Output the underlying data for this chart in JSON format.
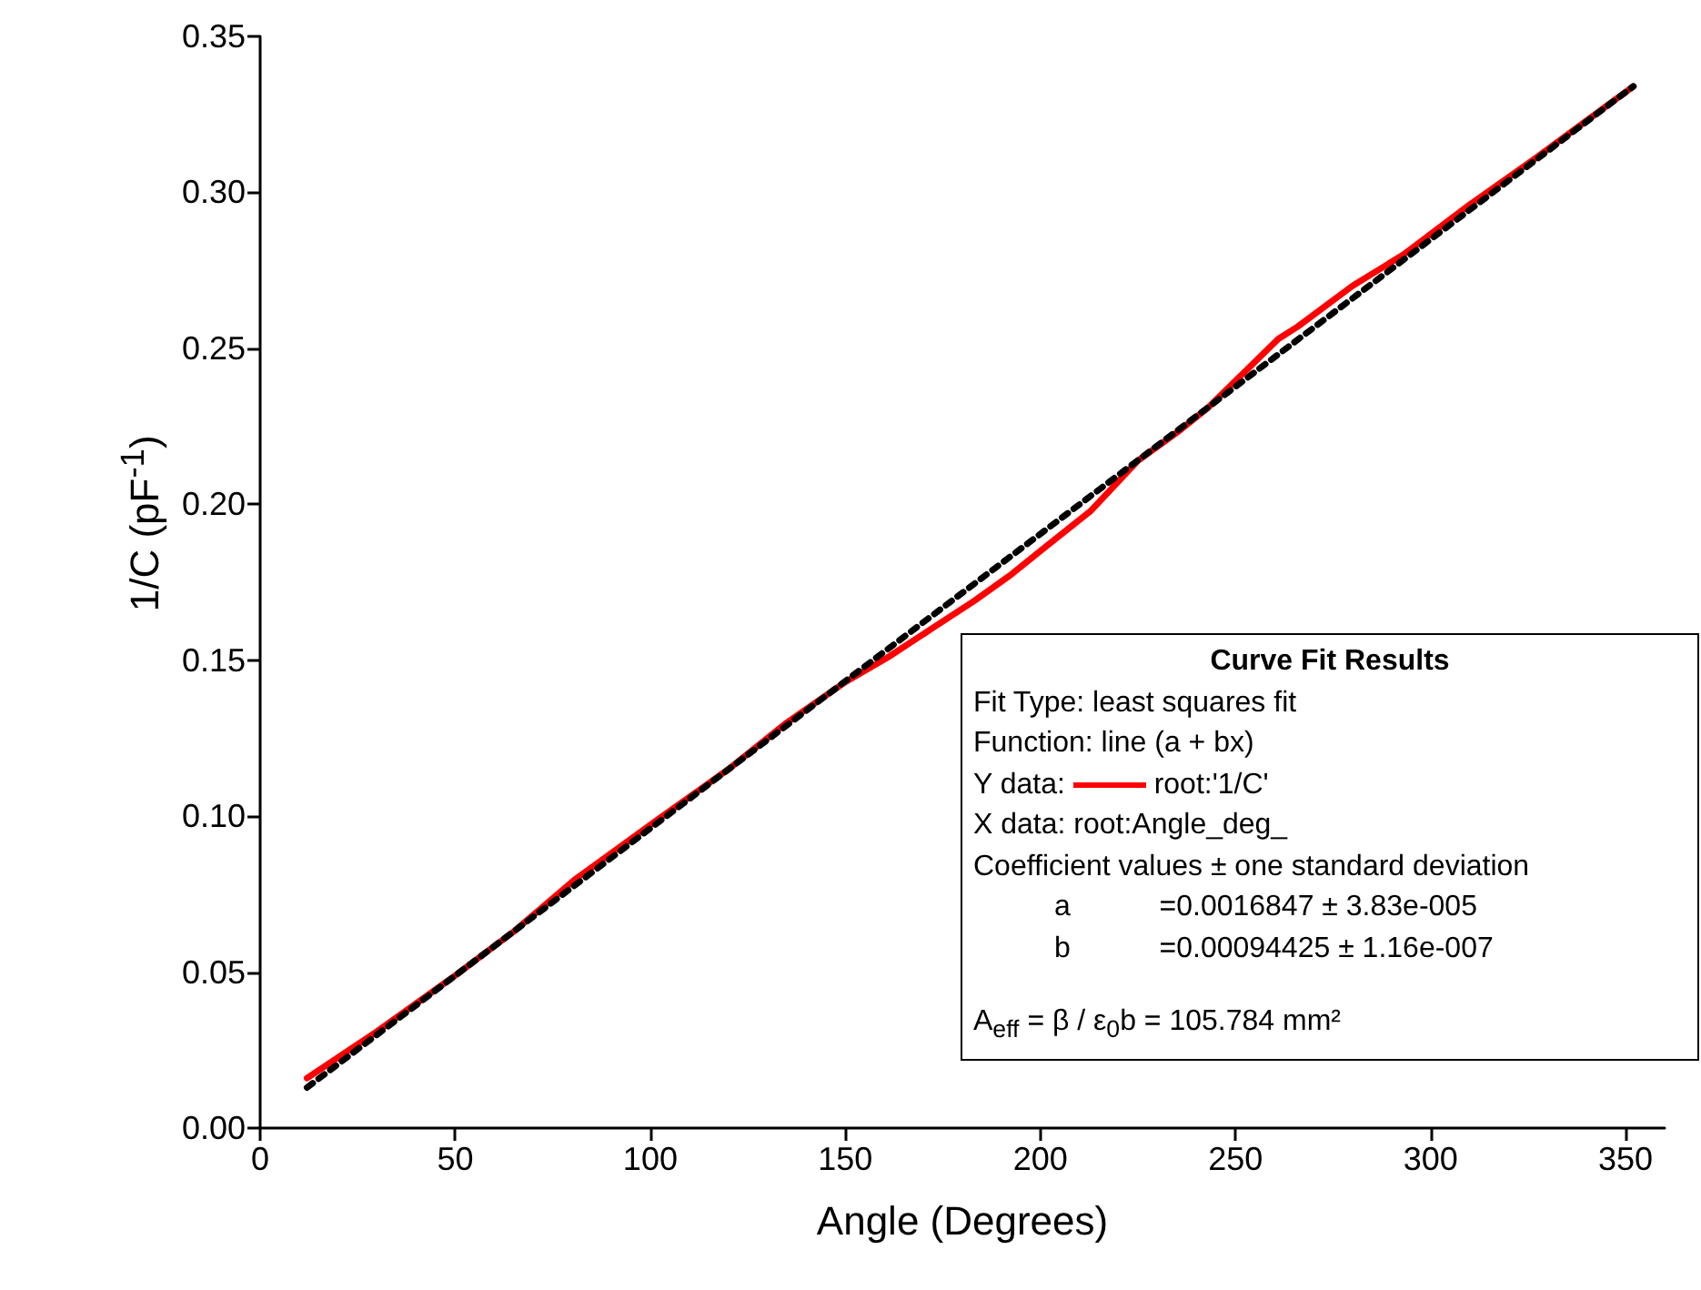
{
  "chart_data": {
    "type": "line",
    "xlabel": "Angle (Degrees)",
    "ylabel": "1/C (pF$^{-1}$)",
    "xlim": [
      0,
      360
    ],
    "xticks": [
      0,
      50,
      100,
      150,
      200,
      250,
      300,
      350
    ],
    "ylim": [
      0,
      0.35
    ],
    "yticks": [
      {
        "value": 0,
        "label": "0.00"
      },
      {
        "value": 0.05,
        "label": "0.05"
      },
      {
        "value": 0.1,
        "label": "0.10"
      },
      {
        "value": 0.15,
        "label": "0.15"
      },
      {
        "value": 0.2,
        "label": "0.20"
      },
      {
        "value": 0.25,
        "label": "0.25"
      },
      {
        "value": 0.3,
        "label": "0.30"
      },
      {
        "value": 0.35,
        "label": "0.35"
      }
    ],
    "grid": false,
    "legend": "bottom right",
    "legend_title": "Curve Fit Results",
    "series": [
      {
        "name": "root:'1/C'",
        "color": "#ff0000",
        "line_style": "solid",
        "x": [
          12,
          30,
          49,
          65,
          81,
          102,
          120,
          135,
          150,
          161,
          172,
          183,
          192,
          202,
          213,
          225,
          235,
          243,
          252,
          261,
          266,
          280,
          293,
          310,
          327,
          340,
          352
        ],
        "values": [
          0.016,
          0.031,
          0.048,
          0.063,
          0.08,
          0.099,
          0.115,
          0.13,
          0.143,
          0.151,
          0.16,
          0.169,
          0.177,
          0.187,
          0.198,
          0.214,
          0.223,
          0.231,
          0.242,
          0.253,
          0.257,
          0.27,
          0.28,
          0.296,
          0.311,
          0.323,
          0.334
        ]
      },
      {
        "type": "line",
        "color": "#000000",
        "line_style": "dashed",
        "x": [
          12,
          352
        ],
        "values": [
          0.013,
          0.334
        ]
      }
    ],
    "annotations": [
      "Fit Type: least squares fit",
      "Function: line (a + bx)",
      "Y data:",
      "X data: root:Angle_deg_",
      "Coefficient values ± one standard deviation",
      "          a           =0.0016847 ± 3.83e-005",
      "          b           =0.00094425 ± 1.16e-007",
      "A$_{eff}$ = β / ε$_{0}$b = 105.784 mm²"
    ]
  }
}
